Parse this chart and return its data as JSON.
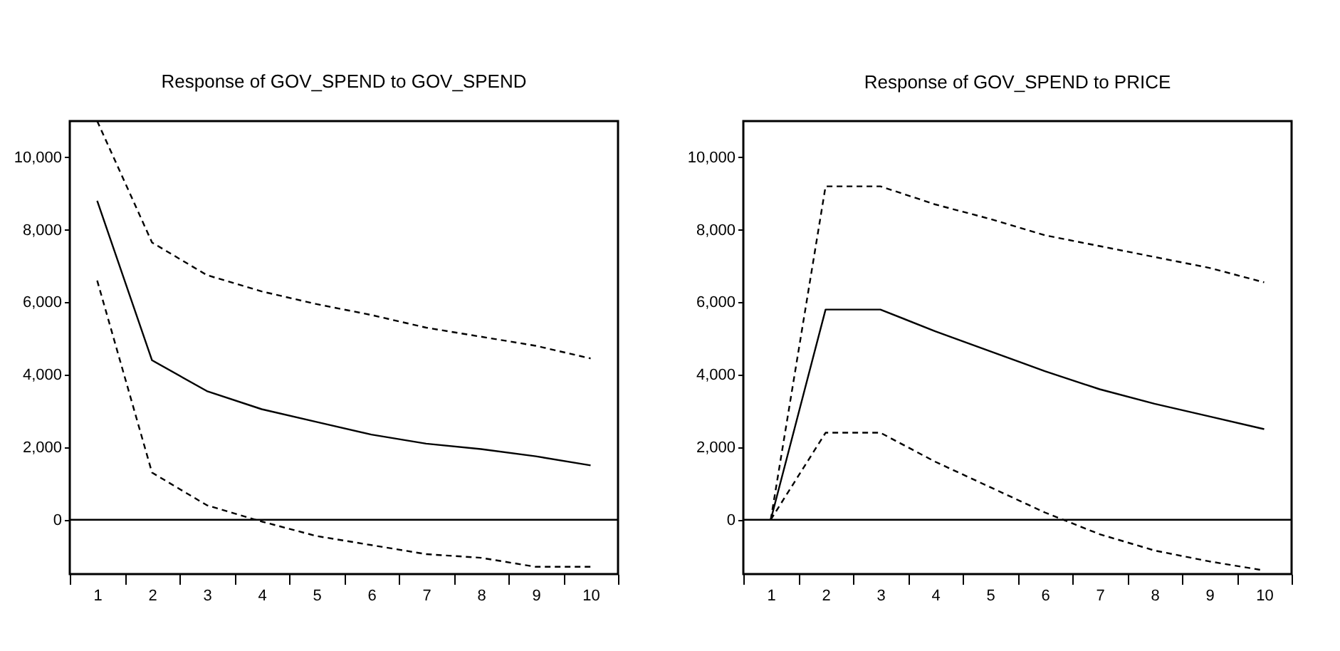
{
  "chart_data": [
    {
      "type": "line",
      "title": "Response of GOV_SPEND to GOV_SPEND",
      "categories": [
        "1",
        "2",
        "3",
        "4",
        "5",
        "6",
        "7",
        "8",
        "9",
        "10"
      ],
      "series": [
        {
          "color": "#000000",
          "line_style": "dashed",
          "values": [
            11000,
            7650,
            6750,
            6300,
            5950,
            5650,
            5300,
            5050,
            4800,
            4450
          ]
        },
        {
          "color": "#000000",
          "line_style": "solid",
          "values": [
            8800,
            4400,
            3550,
            3050,
            2700,
            2350,
            2100,
            1950,
            1750,
            1500
          ]
        },
        {
          "color": "#000000",
          "line_style": "dashed",
          "values": [
            6600,
            1300,
            400,
            -50,
            -450,
            -700,
            -950,
            -1050,
            -1300,
            -1300
          ]
        }
      ],
      "ylim": [
        -1500,
        11000
      ],
      "yticks": [
        0,
        {
          "value": 2000,
          "label": "2,000"
        },
        {
          "value": 4000,
          "label": "4,000"
        },
        {
          "value": 6000,
          "label": "6,000"
        },
        {
          "value": 8000,
          "label": "8,000"
        },
        {
          "value": 10000,
          "label": "10,000"
        }
      ],
      "ref_lines": [
        {
          "axis": "y",
          "value": 0,
          "color": "#000000"
        }
      ]
    },
    {
      "type": "line",
      "title": "Response of GOV_SPEND to PRICE",
      "categories": [
        "1",
        "2",
        "3",
        "4",
        "5",
        "6",
        "7",
        "8",
        "9",
        "10"
      ],
      "series": [
        {
          "color": "#000000",
          "line_style": "dashed",
          "values": [
            0,
            9200,
            9200,
            8700,
            8300,
            7850,
            7550,
            7250,
            6950,
            6550
          ]
        },
        {
          "color": "#000000",
          "line_style": "solid",
          "values": [
            0,
            5800,
            5800,
            5200,
            4650,
            4100,
            3600,
            3200,
            2850,
            2500
          ]
        },
        {
          "color": "#000000",
          "line_style": "dashed",
          "values": [
            0,
            2400,
            2400,
            1600,
            900,
            200,
            -400,
            -850,
            -1150,
            -1400
          ]
        }
      ],
      "ylim": [
        -1500,
        11000
      ],
      "yticks": [
        0,
        {
          "value": 2000,
          "label": "2,000"
        },
        {
          "value": 4000,
          "label": "4,000"
        },
        {
          "value": 6000,
          "label": "6,000"
        },
        {
          "value": 8000,
          "label": "8,000"
        },
        {
          "value": 10000,
          "label": "10,000"
        }
      ],
      "ref_lines": [
        {
          "axis": "y",
          "value": 0,
          "color": "#000000"
        }
      ]
    }
  ]
}
